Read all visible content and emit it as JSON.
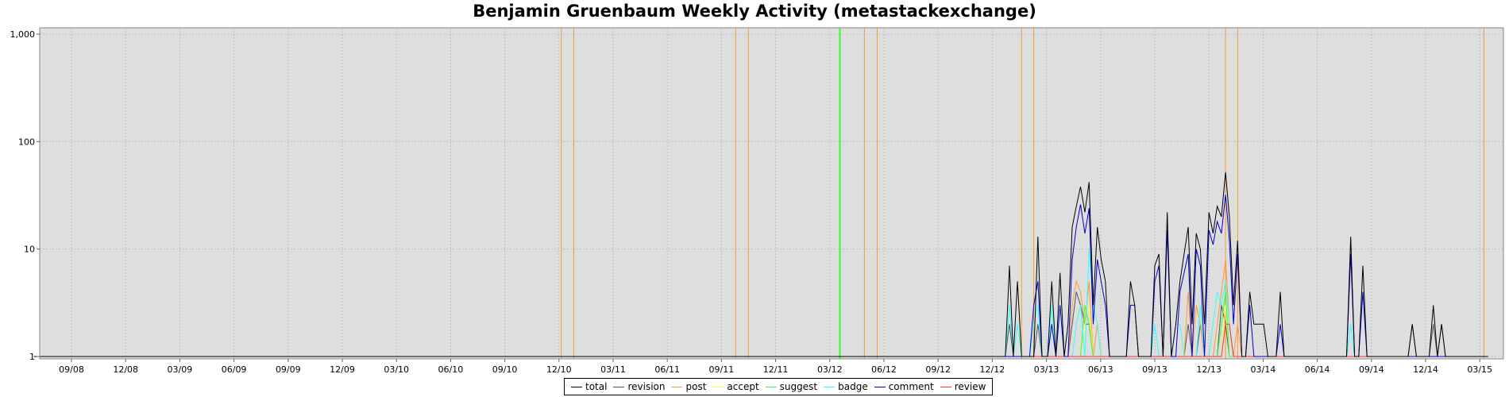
{
  "chart_data": {
    "type": "line",
    "title": "Benjamin Gruenbaum Weekly Activity (metastackexchange)",
    "x_tick_labels": [
      "09/08",
      "12/08",
      "03/09",
      "06/09",
      "09/09",
      "12/09",
      "03/10",
      "06/10",
      "09/10",
      "12/10",
      "03/11",
      "06/11",
      "09/11",
      "12/11",
      "03/12",
      "06/12",
      "09/12",
      "12/12",
      "03/13",
      "06/13",
      "09/13",
      "12/13",
      "03/14",
      "06/14",
      "09/14",
      "12/14",
      "03/15"
    ],
    "y_scale": "log",
    "ylim": [
      1,
      1000
    ],
    "y_tick_labels": [
      "1",
      "10",
      "100",
      "1,000"
    ],
    "grid": true,
    "legend_position": "bottom",
    "colors": {
      "total": "#000000",
      "revision": "#555555",
      "post": "#ff9933",
      "accept": "#ffff33",
      "suggest": "#33ff33",
      "badge": "#33ffff",
      "comment": "#0000cc",
      "review": "#ff3333",
      "plot_bg": "#dedede",
      "grid": "#b8b8b8"
    },
    "vertical_markers": [
      {
        "x": "2010-12-05",
        "color": "#ff9933"
      },
      {
        "x": "2010-12-26",
        "color": "#ff9933"
      },
      {
        "x": "2011-09-25",
        "color": "#ff9933"
      },
      {
        "x": "2011-10-16",
        "color": "#ff9933"
      },
      {
        "x": "2012-03-18",
        "color": "#33ff33"
      },
      {
        "x": "2012-04-29",
        "color": "#ff9933"
      },
      {
        "x": "2012-05-20",
        "color": "#ff9933"
      },
      {
        "x": "2013-01-20",
        "color": "#ff9933"
      },
      {
        "x": "2013-02-10",
        "color": "#ff9933"
      },
      {
        "x": "2013-12-29",
        "color": "#ff9933"
      },
      {
        "x": "2014-01-19",
        "color": "#ff9933"
      },
      {
        "x": "2015-03-08",
        "color": "#ff9933"
      }
    ],
    "series": [
      {
        "name": "total",
        "values": [
          [
            "2012-12-23",
            1
          ],
          [
            "2012-12-30",
            7
          ],
          [
            "2013-01-06",
            1
          ],
          [
            "2013-01-13",
            5
          ],
          [
            "2013-01-20",
            1
          ],
          [
            "2013-02-03",
            1
          ],
          [
            "2013-02-17",
            13
          ],
          [
            "2013-02-24",
            1
          ],
          [
            "2013-03-03",
            1
          ],
          [
            "2013-03-10",
            5
          ],
          [
            "2013-03-17",
            1
          ],
          [
            "2013-03-24",
            6
          ],
          [
            "2013-03-31",
            1
          ],
          [
            "2013-04-07",
            2
          ],
          [
            "2013-04-14",
            16
          ],
          [
            "2013-04-21",
            25
          ],
          [
            "2013-04-28",
            38
          ],
          [
            "2013-05-05",
            22
          ],
          [
            "2013-05-12",
            42
          ],
          [
            "2013-05-19",
            3
          ],
          [
            "2013-05-26",
            16
          ],
          [
            "2013-06-02",
            8
          ],
          [
            "2013-06-09",
            5
          ],
          [
            "2013-06-16",
            1
          ],
          [
            "2013-06-23",
            1
          ],
          [
            "2013-06-30",
            1
          ],
          [
            "2013-07-14",
            1
          ],
          [
            "2013-07-21",
            5
          ],
          [
            "2013-07-28",
            3
          ],
          [
            "2013-08-04",
            1
          ],
          [
            "2013-08-11",
            1
          ],
          [
            "2013-08-25",
            1
          ],
          [
            "2013-09-01",
            7
          ],
          [
            "2013-09-08",
            9
          ],
          [
            "2013-09-15",
            1
          ],
          [
            "2013-09-22",
            22
          ],
          [
            "2013-09-29",
            1
          ],
          [
            "2013-10-06",
            2
          ],
          [
            "2013-10-13",
            5
          ],
          [
            "2013-10-20",
            9
          ],
          [
            "2013-10-27",
            16
          ],
          [
            "2013-11-03",
            2
          ],
          [
            "2013-11-10",
            14
          ],
          [
            "2013-11-17",
            10
          ],
          [
            "2013-11-24",
            2
          ],
          [
            "2013-12-01",
            22
          ],
          [
            "2013-12-08",
            14
          ],
          [
            "2013-12-15",
            25
          ],
          [
            "2013-12-22",
            20
          ],
          [
            "2013-12-29",
            52
          ],
          [
            "2014-01-05",
            20
          ],
          [
            "2014-01-12",
            3
          ],
          [
            "2014-01-19",
            12
          ],
          [
            "2014-01-26",
            1
          ],
          [
            "2014-02-02",
            1
          ],
          [
            "2014-02-09",
            4
          ],
          [
            "2014-02-16",
            2
          ],
          [
            "2014-02-23",
            2
          ],
          [
            "2014-03-02",
            2
          ],
          [
            "2014-03-09",
            1
          ],
          [
            "2014-03-16",
            1
          ],
          [
            "2014-03-23",
            1
          ],
          [
            "2014-03-30",
            4
          ],
          [
            "2014-04-06",
            1
          ],
          [
            "2014-04-13",
            1
          ],
          [
            "2014-07-20",
            1
          ],
          [
            "2014-07-27",
            13
          ],
          [
            "2014-08-03",
            1
          ],
          [
            "2014-08-10",
            1
          ],
          [
            "2014-08-17",
            7
          ],
          [
            "2014-08-24",
            1
          ],
          [
            "2014-11-02",
            1
          ],
          [
            "2014-11-09",
            2
          ],
          [
            "2014-11-16",
            1
          ],
          [
            "2014-12-07",
            1
          ],
          [
            "2014-12-14",
            3
          ],
          [
            "2014-12-21",
            1
          ],
          [
            "2014-12-28",
            2
          ],
          [
            "2015-01-04",
            1
          ]
        ]
      },
      {
        "name": "revision",
        "values": [
          [
            "2012-12-23",
            1
          ],
          [
            "2012-12-30",
            2
          ],
          [
            "2013-01-06",
            1
          ],
          [
            "2013-01-13",
            1
          ],
          [
            "2013-02-10",
            1
          ],
          [
            "2013-02-17",
            2
          ],
          [
            "2013-02-24",
            1
          ],
          [
            "2013-03-03",
            1
          ],
          [
            "2013-03-10",
            1
          ],
          [
            "2013-04-07",
            1
          ],
          [
            "2013-04-14",
            2
          ],
          [
            "2013-04-21",
            4
          ],
          [
            "2013-04-28",
            3
          ],
          [
            "2013-05-05",
            2
          ],
          [
            "2013-05-12",
            2
          ],
          [
            "2013-05-19",
            1
          ],
          [
            "2013-10-27",
            2
          ],
          [
            "2013-11-03",
            1
          ],
          [
            "2013-11-17",
            2
          ],
          [
            "2013-11-24",
            1
          ],
          [
            "2013-12-22",
            3
          ],
          [
            "2013-12-29",
            2
          ],
          [
            "2014-01-05",
            1
          ],
          [
            "2014-11-09",
            2
          ],
          [
            "2014-11-16",
            1
          ],
          [
            "2014-12-14",
            2
          ],
          [
            "2014-12-21",
            1
          ],
          [
            "2014-12-28",
            2
          ],
          [
            "2015-01-04",
            1
          ]
        ]
      },
      {
        "name": "post",
        "values": [
          [
            "2013-04-07",
            1
          ],
          [
            "2013-04-14",
            3
          ],
          [
            "2013-04-21",
            5
          ],
          [
            "2013-04-28",
            4
          ],
          [
            "2013-05-05",
            2
          ],
          [
            "2013-05-12",
            5
          ],
          [
            "2013-05-19",
            1
          ],
          [
            "2013-05-26",
            2
          ],
          [
            "2013-06-02",
            1
          ],
          [
            "2013-10-20",
            1
          ],
          [
            "2013-10-27",
            4
          ],
          [
            "2013-11-03",
            1
          ],
          [
            "2013-11-10",
            3
          ],
          [
            "2013-11-17",
            2
          ],
          [
            "2013-11-24",
            1
          ],
          [
            "2013-12-15",
            2
          ],
          [
            "2013-12-22",
            4
          ],
          [
            "2013-12-29",
            8
          ],
          [
            "2014-01-05",
            2
          ],
          [
            "2014-01-12",
            1
          ],
          [
            "2014-01-19",
            2
          ],
          [
            "2014-01-26",
            1
          ]
        ]
      },
      {
        "name": "accept",
        "values": [
          [
            "2013-04-28",
            1
          ],
          [
            "2013-05-05",
            2
          ],
          [
            "2013-05-12",
            3
          ],
          [
            "2013-05-19",
            1
          ],
          [
            "2013-12-22",
            1
          ],
          [
            "2013-12-29",
            3
          ],
          [
            "2014-01-05",
            1
          ]
        ]
      },
      {
        "name": "suggest",
        "values": [
          [
            "2013-04-28",
            1
          ],
          [
            "2013-05-05",
            3
          ],
          [
            "2013-05-12",
            2
          ],
          [
            "2013-05-19",
            1
          ],
          [
            "2013-12-22",
            2
          ],
          [
            "2013-12-29",
            4
          ],
          [
            "2014-01-05",
            1
          ]
        ]
      },
      {
        "name": "badge",
        "values": [
          [
            "2012-12-23",
            1
          ],
          [
            "2012-12-30",
            3
          ],
          [
            "2013-01-06",
            1
          ],
          [
            "2013-01-13",
            2
          ],
          [
            "2013-01-20",
            1
          ],
          [
            "2013-02-03",
            1
          ],
          [
            "2013-02-10",
            2
          ],
          [
            "2013-02-17",
            3
          ],
          [
            "2013-02-24",
            1
          ],
          [
            "2013-03-03",
            1
          ],
          [
            "2013-03-10",
            3
          ],
          [
            "2013-03-17",
            1
          ],
          [
            "2013-04-21",
            2
          ],
          [
            "2013-04-28",
            3
          ],
          [
            "2013-05-05",
            1
          ],
          [
            "2013-05-12",
            10
          ],
          [
            "2013-05-19",
            3
          ],
          [
            "2013-05-26",
            2
          ],
          [
            "2013-06-02",
            1
          ],
          [
            "2013-08-25",
            1
          ],
          [
            "2013-09-01",
            2
          ],
          [
            "2013-09-08",
            1
          ],
          [
            "2013-09-29",
            1
          ],
          [
            "2013-10-06",
            2
          ],
          [
            "2013-10-13",
            2
          ],
          [
            "2013-10-20",
            1
          ],
          [
            "2013-11-17",
            3
          ],
          [
            "2013-11-24",
            1
          ],
          [
            "2013-12-08",
            2
          ],
          [
            "2013-12-15",
            4
          ],
          [
            "2013-12-22",
            3
          ],
          [
            "2013-12-29",
            5
          ],
          [
            "2014-01-05",
            2
          ],
          [
            "2014-01-12",
            1
          ],
          [
            "2014-07-20",
            1
          ],
          [
            "2014-07-27",
            2
          ],
          [
            "2014-08-03",
            1
          ]
        ]
      },
      {
        "name": "comment",
        "values": [
          [
            "2013-02-03",
            1
          ],
          [
            "2013-02-10",
            3
          ],
          [
            "2013-02-17",
            5
          ],
          [
            "2013-02-24",
            1
          ],
          [
            "2013-03-03",
            1
          ],
          [
            "2013-03-10",
            2
          ],
          [
            "2013-03-17",
            1
          ],
          [
            "2013-03-24",
            3
          ],
          [
            "2013-03-31",
            1
          ],
          [
            "2013-04-07",
            1
          ],
          [
            "2013-04-14",
            8
          ],
          [
            "2013-04-21",
            16
          ],
          [
            "2013-04-28",
            26
          ],
          [
            "2013-05-05",
            14
          ],
          [
            "2013-05-12",
            24
          ],
          [
            "2013-05-19",
            2
          ],
          [
            "2013-05-26",
            8
          ],
          [
            "2013-06-02",
            5
          ],
          [
            "2013-06-09",
            3
          ],
          [
            "2013-06-16",
            1
          ],
          [
            "2013-07-14",
            1
          ],
          [
            "2013-07-21",
            3
          ],
          [
            "2013-07-28",
            3
          ],
          [
            "2013-08-04",
            1
          ],
          [
            "2013-09-01",
            5
          ],
          [
            "2013-09-08",
            7
          ],
          [
            "2013-09-15",
            1
          ],
          [
            "2013-09-22",
            15
          ],
          [
            "2013-09-29",
            1
          ],
          [
            "2013-10-06",
            1
          ],
          [
            "2013-10-13",
            4
          ],
          [
            "2013-10-20",
            6
          ],
          [
            "2013-10-27",
            9
          ],
          [
            "2013-11-03",
            1
          ],
          [
            "2013-11-10",
            10
          ],
          [
            "2013-11-17",
            7
          ],
          [
            "2013-11-24",
            1
          ],
          [
            "2013-12-01",
            15
          ],
          [
            "2013-12-08",
            11
          ],
          [
            "2013-12-15",
            18
          ],
          [
            "2013-12-22",
            14
          ],
          [
            "2013-12-29",
            32
          ],
          [
            "2014-01-05",
            12
          ],
          [
            "2014-01-12",
            2
          ],
          [
            "2014-01-19",
            9
          ],
          [
            "2014-01-26",
            1
          ],
          [
            "2014-02-02",
            1
          ],
          [
            "2014-02-09",
            3
          ],
          [
            "2014-02-16",
            1
          ],
          [
            "2014-03-23",
            1
          ],
          [
            "2014-03-30",
            2
          ],
          [
            "2014-04-06",
            1
          ],
          [
            "2014-07-20",
            1
          ],
          [
            "2014-07-27",
            9
          ],
          [
            "2014-08-03",
            1
          ],
          [
            "2014-08-10",
            1
          ],
          [
            "2014-08-17",
            4
          ],
          [
            "2014-08-24",
            1
          ]
        ]
      },
      {
        "name": "review",
        "values": [
          [
            "2013-12-22",
            1
          ],
          [
            "2013-12-29",
            2
          ],
          [
            "2014-01-05",
            2
          ],
          [
            "2014-01-12",
            1
          ]
        ]
      }
    ]
  }
}
